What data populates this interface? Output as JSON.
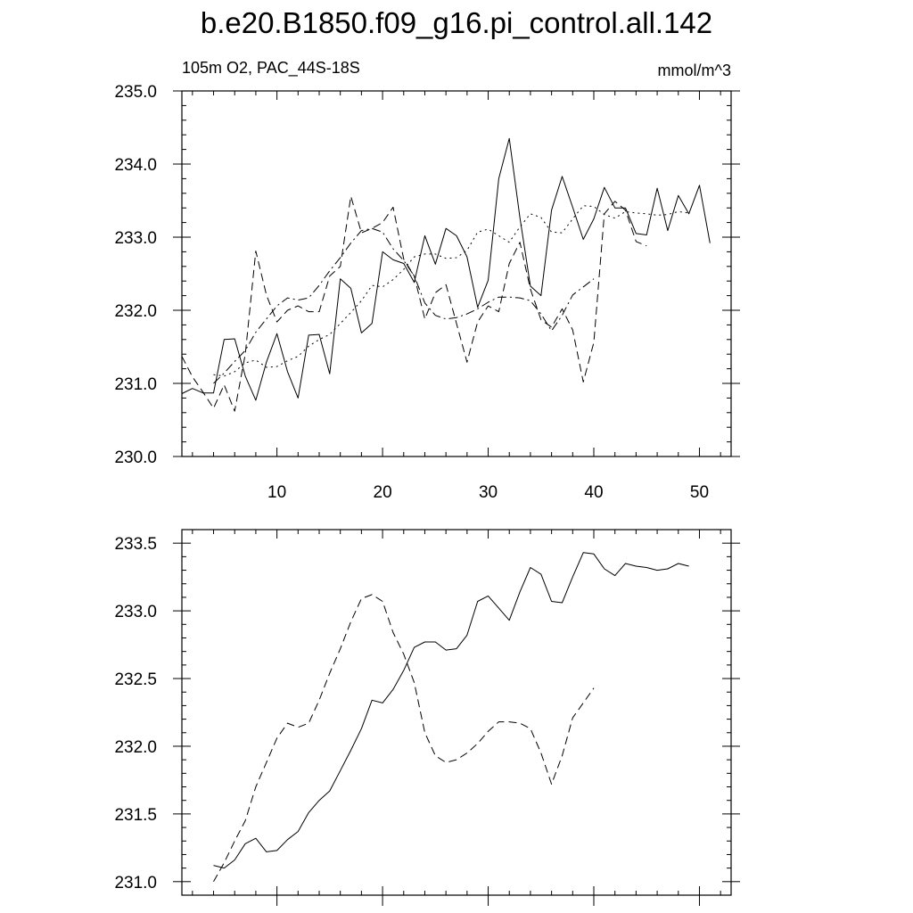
{
  "title": "b.e20.B1850.f09_g16.pi_control.all.142",
  "subtitle_left": "105m O2, PAC_44S-18S",
  "subtitle_right": "mmol/m^3",
  "chart_data": [
    {
      "type": "line",
      "xlim": [
        1,
        53
      ],
      "ylim": [
        230.0,
        235.0
      ],
      "x_ticks": [
        10,
        20,
        30,
        40,
        50
      ],
      "y_ticks": [
        "230.0",
        "231.0",
        "232.0",
        "233.0",
        "234.0",
        "235.0"
      ],
      "y_tick_values": [
        230.0,
        231.0,
        232.0,
        233.0,
        234.0,
        235.0
      ],
      "series": [
        {
          "style": "solid",
          "x_start": 1,
          "values": [
            230.86,
            230.93,
            230.87,
            230.87,
            231.6,
            231.61,
            231.1,
            230.77,
            231.29,
            231.68,
            231.16,
            230.8,
            231.66,
            231.67,
            231.13,
            232.43,
            232.3,
            231.69,
            231.82,
            232.8,
            232.69,
            232.64,
            232.38,
            233.02,
            232.63,
            233.12,
            233.02,
            232.73,
            232.04,
            232.41,
            233.8,
            234.35,
            233.27,
            232.33,
            232.2,
            233.37,
            233.83,
            233.41,
            232.97,
            233.25,
            233.68,
            233.4,
            233.4,
            233.05,
            233.03,
            233.67,
            233.09,
            233.57,
            233.32,
            233.71,
            232.92
          ]
        },
        {
          "style": "dashed",
          "x_start": 1,
          "values": [
            231.37,
            231.09,
            230.88,
            230.66,
            230.98,
            230.62,
            231.4,
            232.81,
            232.21,
            231.84,
            232.0,
            232.06,
            231.98,
            231.98,
            232.47,
            232.6,
            233.56,
            233.06,
            233.12,
            233.2,
            233.41,
            232.7,
            232.47,
            231.88,
            232.24,
            232.35,
            231.82,
            231.29,
            231.84,
            232.06,
            231.98,
            232.64,
            232.93,
            232.29,
            231.87,
            231.77,
            232.02,
            231.73,
            231.02,
            231.56,
            233.32,
            233.49,
            233.37,
            232.94,
            232.88
          ]
        },
        {
          "style": "dash-dot",
          "x_start": 4,
          "values": [
            231.0,
            231.14,
            231.3,
            231.45,
            231.7,
            231.88,
            232.06,
            232.17,
            232.14,
            232.17,
            232.34,
            232.54,
            232.72,
            232.92,
            233.09,
            233.12,
            233.07,
            232.84,
            232.68,
            232.47,
            232.1,
            231.93,
            231.88,
            231.9,
            231.95,
            232.02,
            232.11,
            232.18,
            232.18,
            232.17,
            232.13,
            231.95,
            231.72,
            231.93,
            232.21,
            232.32,
            232.43
          ]
        },
        {
          "style": "dotted",
          "x_start": 4,
          "values": [
            231.12,
            231.1,
            231.16,
            231.28,
            231.32,
            231.22,
            231.23,
            231.31,
            231.37,
            231.51,
            231.6,
            231.67,
            231.82,
            231.97,
            232.13,
            232.34,
            232.32,
            232.42,
            232.56,
            232.73,
            232.77,
            232.77,
            232.71,
            232.72,
            232.82,
            233.07,
            233.11,
            233.02,
            232.93,
            233.14,
            233.32,
            233.27,
            233.07,
            233.06,
            233.25,
            233.43,
            233.42,
            233.31,
            233.26,
            233.35,
            233.33,
            233.32,
            233.3,
            233.31,
            233.35,
            233.33
          ]
        }
      ]
    },
    {
      "type": "line",
      "xlim": [
        1,
        53
      ],
      "ylim": [
        230.9,
        233.6
      ],
      "x_ticks": [
        10,
        20,
        30,
        40,
        50
      ],
      "y_ticks": [
        "231.0",
        "231.5",
        "232.0",
        "232.5",
        "233.0",
        "233.5"
      ],
      "y_tick_values": [
        231.0,
        231.5,
        232.0,
        232.5,
        233.0,
        233.5
      ],
      "series": [
        {
          "style": "solid",
          "x_start": 4,
          "values": [
            231.12,
            231.1,
            231.16,
            231.28,
            231.32,
            231.22,
            231.23,
            231.31,
            231.37,
            231.51,
            231.6,
            231.67,
            231.82,
            231.97,
            232.13,
            232.34,
            232.32,
            232.42,
            232.56,
            232.73,
            232.77,
            232.77,
            232.71,
            232.72,
            232.82,
            233.07,
            233.11,
            233.02,
            232.93,
            233.14,
            233.32,
            233.27,
            233.07,
            233.06,
            233.25,
            233.43,
            233.42,
            233.31,
            233.26,
            233.35,
            233.33,
            233.32,
            233.3,
            233.31,
            233.35,
            233.33
          ]
        },
        {
          "style": "dashed",
          "x_start": 4,
          "values": [
            231.0,
            231.14,
            231.3,
            231.45,
            231.7,
            231.88,
            232.06,
            232.17,
            232.14,
            232.17,
            232.34,
            232.54,
            232.72,
            232.92,
            233.09,
            233.12,
            233.07,
            232.84,
            232.68,
            232.47,
            232.1,
            231.93,
            231.88,
            231.9,
            231.95,
            232.02,
            232.11,
            232.18,
            232.18,
            232.17,
            232.13,
            231.95,
            231.72,
            231.93,
            232.21,
            232.32,
            232.43
          ]
        }
      ]
    }
  ]
}
